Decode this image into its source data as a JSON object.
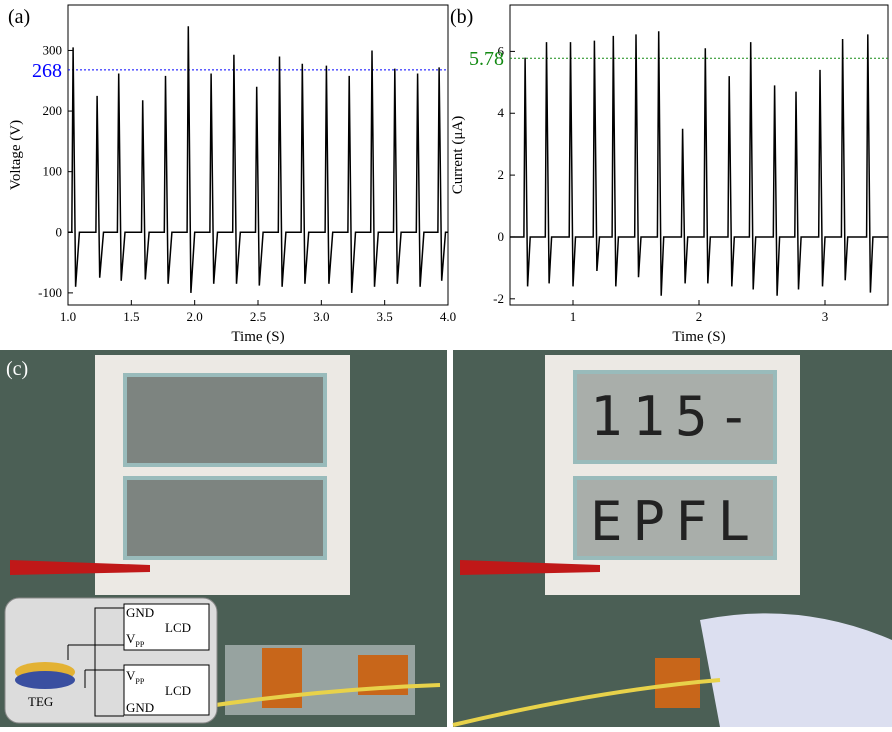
{
  "chart_data": [
    {
      "type": "line",
      "label": "(a)",
      "x_label": "Time (S)",
      "y_label": "Voltage (V)",
      "color": "#000000",
      "xlim": [
        1.0,
        4.0
      ],
      "ylim": [
        -120,
        375
      ],
      "xticks": [
        {
          "value": 1.0,
          "label": "1.0"
        },
        1.5,
        {
          "value": 2.0,
          "label": "2.0"
        },
        2.5,
        {
          "value": 3.0,
          "label": "3.0"
        },
        3.5,
        {
          "value": 4.0,
          "label": "4.0"
        }
      ],
      "yticks": [
        -100,
        0,
        100,
        200,
        300
      ],
      "ref_line": {
        "value": 268,
        "color": "#0000ff"
      },
      "x": [
        1.0,
        1.03,
        1.04,
        1.06,
        1.09,
        1.22,
        1.23,
        1.25,
        1.28,
        1.39,
        1.4,
        1.42,
        1.45,
        1.58,
        1.59,
        1.61,
        1.64,
        1.76,
        1.77,
        1.79,
        1.82,
        1.94,
        1.95,
        1.97,
        2.0,
        2.12,
        2.13,
        2.15,
        2.18,
        2.3,
        2.31,
        2.33,
        2.36,
        2.48,
        2.49,
        2.51,
        2.54,
        2.66,
        2.67,
        2.69,
        2.72,
        2.84,
        2.85,
        2.87,
        2.9,
        3.03,
        3.04,
        3.06,
        3.09,
        3.21,
        3.22,
        3.24,
        3.27,
        3.39,
        3.4,
        3.42,
        3.45,
        3.57,
        3.58,
        3.6,
        3.63,
        3.75,
        3.76,
        3.78,
        3.81,
        3.92,
        3.93,
        3.95,
        3.98,
        4.0
      ],
      "values": [
        0,
        0,
        305,
        -90,
        0,
        0,
        225,
        -75,
        0,
        0,
        262,
        -80,
        0,
        0,
        218,
        -78,
        0,
        0,
        258,
        -85,
        0,
        0,
        340,
        -100,
        0,
        0,
        262,
        -85,
        0,
        0,
        293,
        -85,
        0,
        0,
        240,
        -88,
        0,
        0,
        290,
        -90,
        0,
        0,
        278,
        -85,
        0,
        0,
        275,
        -85,
        0,
        0,
        258,
        -100,
        0,
        0,
        300,
        -90,
        0,
        0,
        270,
        -85,
        0,
        0,
        262,
        -90,
        0,
        0,
        272,
        -80,
        0,
        0
      ]
    },
    {
      "type": "line",
      "label": "(b)",
      "x_label": "Time (S)",
      "y_label": "Current (μA)",
      "color": "#000000",
      "xlim": [
        0.5,
        3.5
      ],
      "ylim": [
        -2.2,
        7.5
      ],
      "xticks": [
        1,
        2,
        3
      ],
      "yticks": [
        -2,
        0,
        2,
        4,
        6
      ],
      "ref_line": {
        "value": 5.78,
        "color": "#138a13"
      },
      "x": [
        0.5,
        0.61,
        0.62,
        0.64,
        0.66,
        0.78,
        0.79,
        0.81,
        0.83,
        0.97,
        0.98,
        1.0,
        1.02,
        1.16,
        1.17,
        1.19,
        1.21,
        1.31,
        1.32,
        1.34,
        1.36,
        1.49,
        1.5,
        1.52,
        1.54,
        1.67,
        1.68,
        1.7,
        1.72,
        1.86,
        1.87,
        1.89,
        1.91,
        2.04,
        2.05,
        2.07,
        2.09,
        2.23,
        2.24,
        2.26,
        2.28,
        2.4,
        2.41,
        2.43,
        2.45,
        2.59,
        2.6,
        2.62,
        2.64,
        2.76,
        2.77,
        2.79,
        2.81,
        2.95,
        2.96,
        2.98,
        3.0,
        3.13,
        3.14,
        3.16,
        3.18,
        3.33,
        3.34,
        3.36,
        3.38,
        3.5
      ],
      "values": [
        0,
        0,
        5.8,
        -1.6,
        0,
        0,
        6.3,
        -1.5,
        0,
        0,
        6.3,
        -1.6,
        0,
        0,
        6.35,
        -1.1,
        0,
        0,
        6.5,
        -1.6,
        0,
        0,
        6.55,
        -1.3,
        0,
        0,
        6.65,
        -1.9,
        0,
        0,
        3.5,
        -1.5,
        0,
        0,
        6.1,
        -1.5,
        0,
        0,
        5.2,
        -1.6,
        0,
        0,
        6.3,
        -1.7,
        0,
        0,
        4.9,
        -1.9,
        0,
        0,
        4.7,
        -1.7,
        0,
        0,
        5.4,
        -1.6,
        0,
        0,
        6.4,
        -1.4,
        0,
        0,
        6.55,
        -1.8,
        0,
        0
      ]
    }
  ],
  "panel_c": {
    "label": "(c)",
    "lcd_top": "115-",
    "lcd_bottom": "EPFL",
    "inset": {
      "gnd_top": "GND",
      "lcd_top": "LCD",
      "v_top": "V",
      "pp_top": "PP",
      "teg": "TEG",
      "v_bottom": "V",
      "pp_bottom": "PP",
      "lcd_bottom": "LCD",
      "gnd_bottom": "GND"
    }
  }
}
